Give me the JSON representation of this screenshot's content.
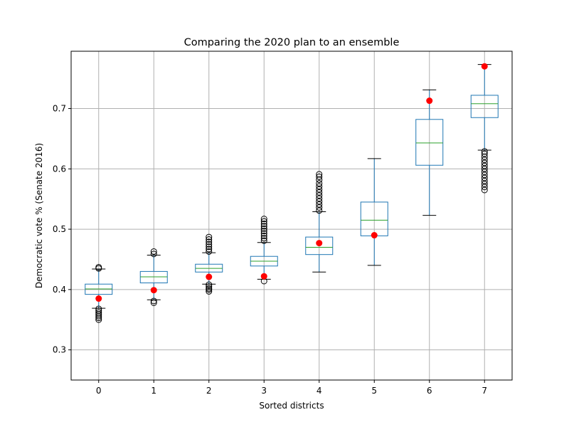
{
  "chart_data": {
    "type": "box",
    "title": "Comparing the 2020 plan to an ensemble",
    "xlabel": "Sorted districts",
    "ylabel": "Democratic vote % (Senate 2016)",
    "categories": [
      "0",
      "1",
      "2",
      "3",
      "4",
      "5",
      "6",
      "7"
    ],
    "ylim": [
      0.25,
      0.795
    ],
    "yticks": [
      0.3,
      0.4,
      0.5,
      0.6,
      0.7
    ],
    "ytick_labels": [
      "0.3",
      "0.4",
      "0.5",
      "0.6",
      "0.7"
    ],
    "grid": true,
    "boxes": [
      {
        "category": "0",
        "whisker_low": 0.369,
        "q1": 0.392,
        "median": 0.401,
        "q3": 0.409,
        "whisker_high": 0.434,
        "outliers_low": [
          0.35,
          0.353,
          0.356,
          0.359,
          0.362,
          0.365,
          0.368
        ],
        "outliers_high": [
          0.435,
          0.437
        ]
      },
      {
        "category": "1",
        "whisker_low": 0.383,
        "q1": 0.411,
        "median": 0.421,
        "q3": 0.43,
        "whisker_high": 0.457,
        "outliers_low": [
          0.378,
          0.381
        ],
        "outliers_high": [
          0.459,
          0.463
        ]
      },
      {
        "category": "2",
        "whisker_low": 0.409,
        "q1": 0.429,
        "median": 0.435,
        "q3": 0.442,
        "whisker_high": 0.461,
        "outliers_low": [
          0.397,
          0.4,
          0.402,
          0.405,
          0.408
        ],
        "outliers_high": [
          0.463,
          0.467,
          0.471,
          0.475,
          0.479,
          0.483,
          0.487
        ]
      },
      {
        "category": "3",
        "whisker_low": 0.417,
        "q1": 0.439,
        "median": 0.447,
        "q3": 0.455,
        "whisker_high": 0.478,
        "outliers_low": [
          0.414
        ],
        "outliers_high": [
          0.481,
          0.485,
          0.489,
          0.493,
          0.497,
          0.501,
          0.505,
          0.509,
          0.513,
          0.517
        ]
      },
      {
        "category": "4",
        "whisker_low": 0.429,
        "q1": 0.458,
        "median": 0.47,
        "q3": 0.487,
        "whisker_high": 0.529,
        "outliers_low": [],
        "outliers_high": [
          0.531,
          0.536,
          0.541,
          0.546,
          0.551,
          0.556,
          0.561,
          0.566,
          0.571,
          0.576,
          0.582,
          0.587,
          0.591
        ]
      },
      {
        "category": "5",
        "whisker_low": 0.44,
        "q1": 0.489,
        "median": 0.515,
        "q3": 0.545,
        "whisker_high": 0.617,
        "outliers_low": [],
        "outliers_high": []
      },
      {
        "category": "6",
        "whisker_low": 0.523,
        "q1": 0.606,
        "median": 0.643,
        "q3": 0.682,
        "whisker_high": 0.731,
        "outliers_low": [],
        "outliers_high": []
      },
      {
        "category": "7",
        "whisker_low": 0.631,
        "q1": 0.685,
        "median": 0.708,
        "q3": 0.722,
        "whisker_high": 0.773,
        "outliers_low": [
          0.565,
          0.57,
          0.575,
          0.58,
          0.585,
          0.59,
          0.595,
          0.6,
          0.605,
          0.61,
          0.615,
          0.62,
          0.625,
          0.629
        ],
        "outliers_high": []
      }
    ],
    "plan_points": [
      0.385,
      0.399,
      0.421,
      0.422,
      0.477,
      0.49,
      0.713,
      0.77
    ],
    "colors": {
      "box": "#1f77b4",
      "median": "#2ca02c",
      "whisker": "#000000",
      "outlier": "#000000",
      "plan_point": "#ff0000",
      "grid": "#b0b0b0"
    }
  }
}
